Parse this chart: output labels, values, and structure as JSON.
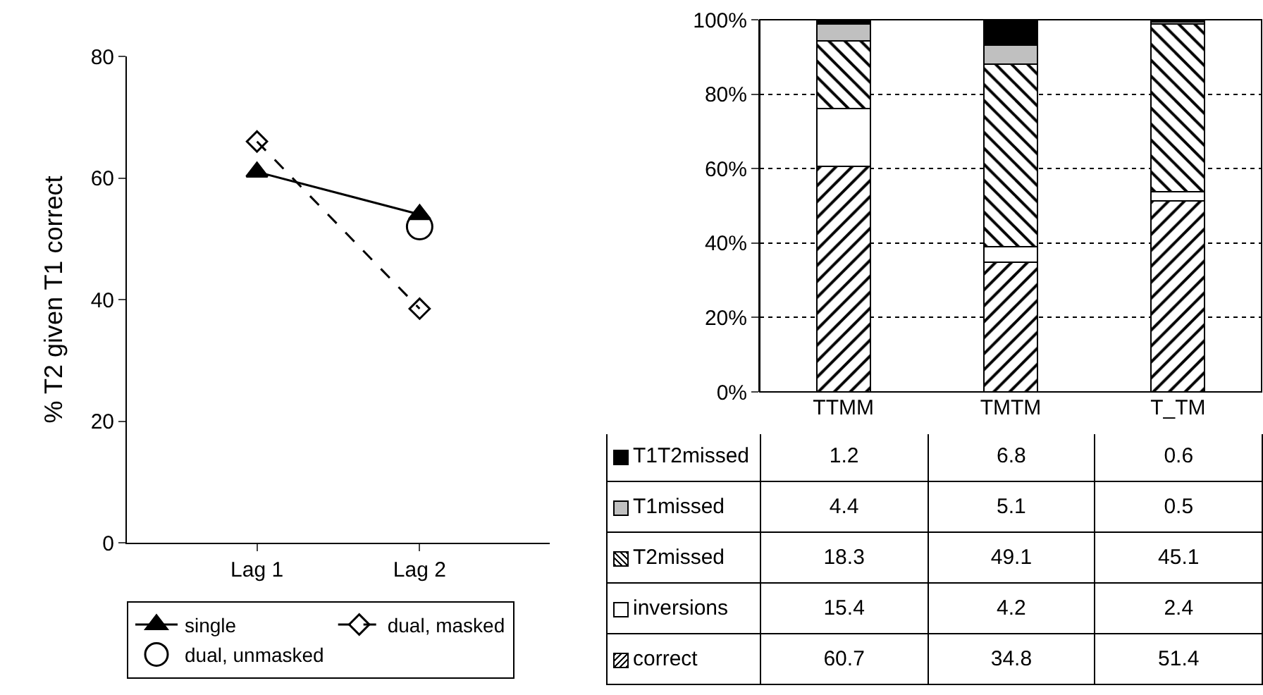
{
  "chart_data": [
    {
      "type": "line",
      "ylabel": "% T2 given T1 correct",
      "categories": [
        "Lag 1",
        "Lag 2"
      ],
      "ylim": [
        0,
        80
      ],
      "yticks": [
        0,
        20,
        40,
        60,
        80
      ],
      "legend": "bottom",
      "series": [
        {
          "name": "single",
          "color": "#000000",
          "values": [
            61,
            54
          ],
          "marker": "triangle",
          "line_style": "solid"
        },
        {
          "name": "dual, masked",
          "color": "#000000",
          "values": [
            66,
            38.5
          ],
          "marker": "diamond",
          "line_style": "dashed"
        },
        {
          "name": "dual, unmasked",
          "type": "scatter",
          "color": "#000000",
          "values": [
            null,
            52
          ],
          "marker": "circle"
        }
      ]
    },
    {
      "type": "bar",
      "stacked": true,
      "categories": [
        "TTMM",
        "TMTM",
        "T_TM"
      ],
      "ylim": [
        0,
        100
      ],
      "yticks": [
        {
          "value": 0,
          "label": "0%"
        },
        {
          "value": 20,
          "label": "20%"
        },
        {
          "value": 40,
          "label": "40%"
        },
        {
          "value": 60,
          "label": "60%"
        },
        {
          "value": 80,
          "label": "80%"
        },
        {
          "value": 100,
          "label": "100%"
        }
      ],
      "grid": "y",
      "data_labels": true,
      "legend": "bottom",
      "series": [
        {
          "name": "correct",
          "color": "#000000",
          "values": [
            60.7,
            34.8,
            51.4
          ]
        },
        {
          "name": "inversions",
          "color": "#ffffff",
          "values": [
            15.4,
            4.2,
            2.4
          ]
        },
        {
          "name": "T2missed",
          "color": "#000000",
          "values": [
            18.3,
            49.1,
            45.1
          ]
        },
        {
          "name": "T1missed",
          "color": "#c0c0c0",
          "values": [
            4.4,
            5.1,
            0.5
          ]
        },
        {
          "name": "T1T2missed",
          "color": "#000000",
          "values": [
            1.2,
            6.8,
            0.6
          ]
        }
      ]
    }
  ]
}
